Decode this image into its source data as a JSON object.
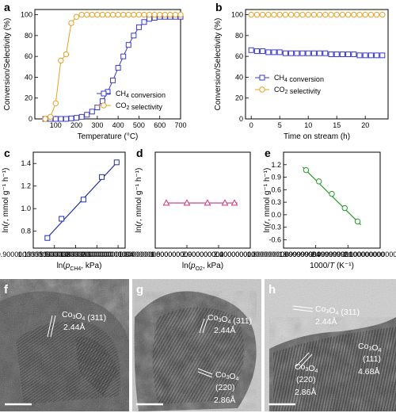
{
  "chart_data": [
    {
      "id": "a",
      "type": "line",
      "panel_letter": "a",
      "xlabel": "Temperature (°C)",
      "ylabel": "Conversion/Selectivity (%)",
      "xlim": [
        0,
        700
      ],
      "ylim": [
        0,
        105
      ],
      "xticks": [
        100,
        200,
        300,
        400,
        500,
        600,
        700
      ],
      "yticks": [
        0,
        20,
        40,
        60,
        80,
        100
      ],
      "legend_position": "bottom-right",
      "series": [
        {
          "name": "CH4 conversion",
          "marker": "square",
          "color": "#3a3ac8",
          "x": [
            50,
            75,
            100,
            125,
            150,
            175,
            200,
            225,
            250,
            275,
            300,
            325,
            350,
            375,
            400,
            425,
            450,
            475,
            500,
            525,
            550,
            575,
            600,
            625,
            650,
            675,
            700
          ],
          "y": [
            0,
            0,
            0,
            0,
            0,
            0.5,
            1,
            2,
            4,
            7,
            11,
            17,
            26,
            37,
            49,
            60,
            71,
            80,
            88,
            93,
            96,
            97,
            98,
            98,
            98,
            98,
            98
          ]
        },
        {
          "name": "CO2 selectivity",
          "marker": "circle",
          "color": "#e8a020",
          "x": [
            50,
            75,
            100,
            125,
            150,
            175,
            200,
            225,
            250,
            275,
            300,
            325,
            350,
            375,
            400,
            425,
            450,
            475,
            500,
            525,
            550,
            575,
            600,
            625,
            650,
            675,
            700
          ],
          "y": [
            0,
            2,
            15,
            56,
            62,
            92,
            98,
            100,
            100,
            100,
            100,
            100,
            100,
            100,
            100,
            100,
            100,
            100,
            100,
            100,
            100,
            100,
            100,
            100,
            100,
            100,
            100
          ]
        }
      ]
    },
    {
      "id": "b",
      "type": "line",
      "panel_letter": "b",
      "xlabel": "Time on stream (h)",
      "ylabel": "Conversion/Selectivity (%)",
      "xlim": [
        -1,
        24
      ],
      "ylim": [
        0,
        105
      ],
      "xticks": [
        0,
        5,
        10,
        15,
        20
      ],
      "yticks": [
        0,
        20,
        40,
        60,
        80,
        100
      ],
      "legend_position": "bottom-right",
      "series": [
        {
          "name": "CH4 conversion",
          "marker": "square",
          "color": "#3a3ac8",
          "x": [
            0,
            1,
            2,
            3,
            4,
            5,
            6,
            7,
            8,
            9,
            10,
            11,
            12,
            13,
            14,
            15,
            16,
            17,
            18,
            19,
            20,
            21,
            22,
            23
          ],
          "y": [
            66,
            65,
            65,
            64,
            64,
            64,
            63,
            63,
            63,
            63,
            63,
            63,
            63,
            63,
            62,
            62,
            62,
            62,
            62,
            61,
            61,
            61,
            61,
            61
          ]
        },
        {
          "name": "CO2 selectivity",
          "marker": "circle",
          "color": "#e8a020",
          "x": [
            0,
            1,
            2,
            3,
            4,
            5,
            6,
            7,
            8,
            9,
            10,
            11,
            12,
            13,
            14,
            15,
            16,
            17,
            18,
            19,
            20,
            21,
            22,
            23
          ],
          "y": [
            100,
            100,
            100,
            100,
            100,
            100,
            100,
            100,
            100,
            100,
            100,
            100,
            100,
            100,
            100,
            100,
            100,
            100,
            100,
            100,
            100,
            100,
            100,
            100
          ]
        }
      ]
    },
    {
      "id": "c",
      "type": "scatter",
      "panel_letter": "c",
      "xlabel": "ln(p_CH4, kPa)",
      "ylabel": "ln(r, mmol g⁻¹ h⁻¹)",
      "xlim": [
        0.9,
        2.2
      ],
      "ylim": [
        0.65,
        1.5
      ],
      "xticks": [
        0.9,
        1.2,
        1.5,
        1.8,
        2.1
      ],
      "yticks": [
        0.8,
        1.0,
        1.2,
        1.4
      ],
      "series": [
        {
          "name": "",
          "marker": "square",
          "color": "#1f2ea8",
          "x": [
            1.1,
            1.3,
            1.61,
            1.87,
            2.08
          ],
          "y": [
            0.74,
            0.91,
            1.08,
            1.28,
            1.41
          ]
        }
      ],
      "fit_line": {
        "x": [
          1.08,
          2.1
        ],
        "y": [
          0.73,
          1.42
        ],
        "color": "#1f2ea8"
      }
    },
    {
      "id": "d",
      "type": "scatter",
      "panel_letter": "d",
      "xlabel": "ln(p_O2, kPa)",
      "ylabel": "ln(r, mmol g⁻¹ h⁻¹)",
      "xlim": [
        1.6,
        2.2
      ],
      "ylim": [
        0.65,
        1.5
      ],
      "xticks": [
        1.6,
        1.8,
        2.0,
        2.2
      ],
      "yticks": [],
      "series": [
        {
          "name": "",
          "marker": "triangle",
          "color": "#d0347a",
          "x": [
            1.67,
            1.8,
            1.93,
            2.04,
            2.1
          ],
          "y": [
            1.05,
            1.05,
            1.05,
            1.05,
            1.05
          ]
        }
      ],
      "fit_line": {
        "x": [
          1.67,
          2.12
        ],
        "y": [
          1.05,
          1.05
        ],
        "color": "#d0347a"
      }
    },
    {
      "id": "e",
      "type": "scatter",
      "panel_letter": "e",
      "xlabel": "1000/T (K⁻¹)",
      "ylabel": "ln(r, mmol g⁻¹ h⁻¹)",
      "xlim": [
        1.8,
        2.1
      ],
      "ylim": [
        -0.8,
        1.5
      ],
      "xticks": [
        1.8,
        1.9,
        2.0,
        2.1
      ],
      "yticks": [
        -0.6,
        -0.3,
        0.0,
        0.3,
        0.6,
        0.9,
        1.2
      ],
      "series": [
        {
          "name": "",
          "marker": "circle",
          "color": "#2a9a2a",
          "x": [
            1.87,
            1.91,
            1.95,
            1.99,
            2.03
          ],
          "y": [
            1.07,
            0.8,
            0.5,
            0.16,
            -0.16
          ]
        }
      ],
      "fit_line": {
        "x": [
          1.86,
          2.04
        ],
        "y": [
          1.14,
          -0.24
        ],
        "color": "#2a9a2a"
      }
    }
  ],
  "tem_images": [
    {
      "panel_letter": "f",
      "labels": [
        {
          "phase": "Co3O4",
          "index": "(311)",
          "spacing": "2.44Å"
        }
      ]
    },
    {
      "panel_letter": "g",
      "labels": [
        {
          "phase": "Co3O4",
          "index": "(311)",
          "spacing": "2.44Å"
        },
        {
          "phase": "Co3O4",
          "index": "(220)",
          "spacing": "2.86Å"
        }
      ]
    },
    {
      "panel_letter": "h",
      "labels": [
        {
          "phase": "Co3O4",
          "index": "(311)",
          "spacing": "2.44Å"
        },
        {
          "phase": "Co3O4",
          "index": "(111)",
          "spacing": "4.68Å"
        },
        {
          "phase": "Co3O4",
          "index": "(220)",
          "spacing": "2.86Å"
        }
      ]
    }
  ]
}
